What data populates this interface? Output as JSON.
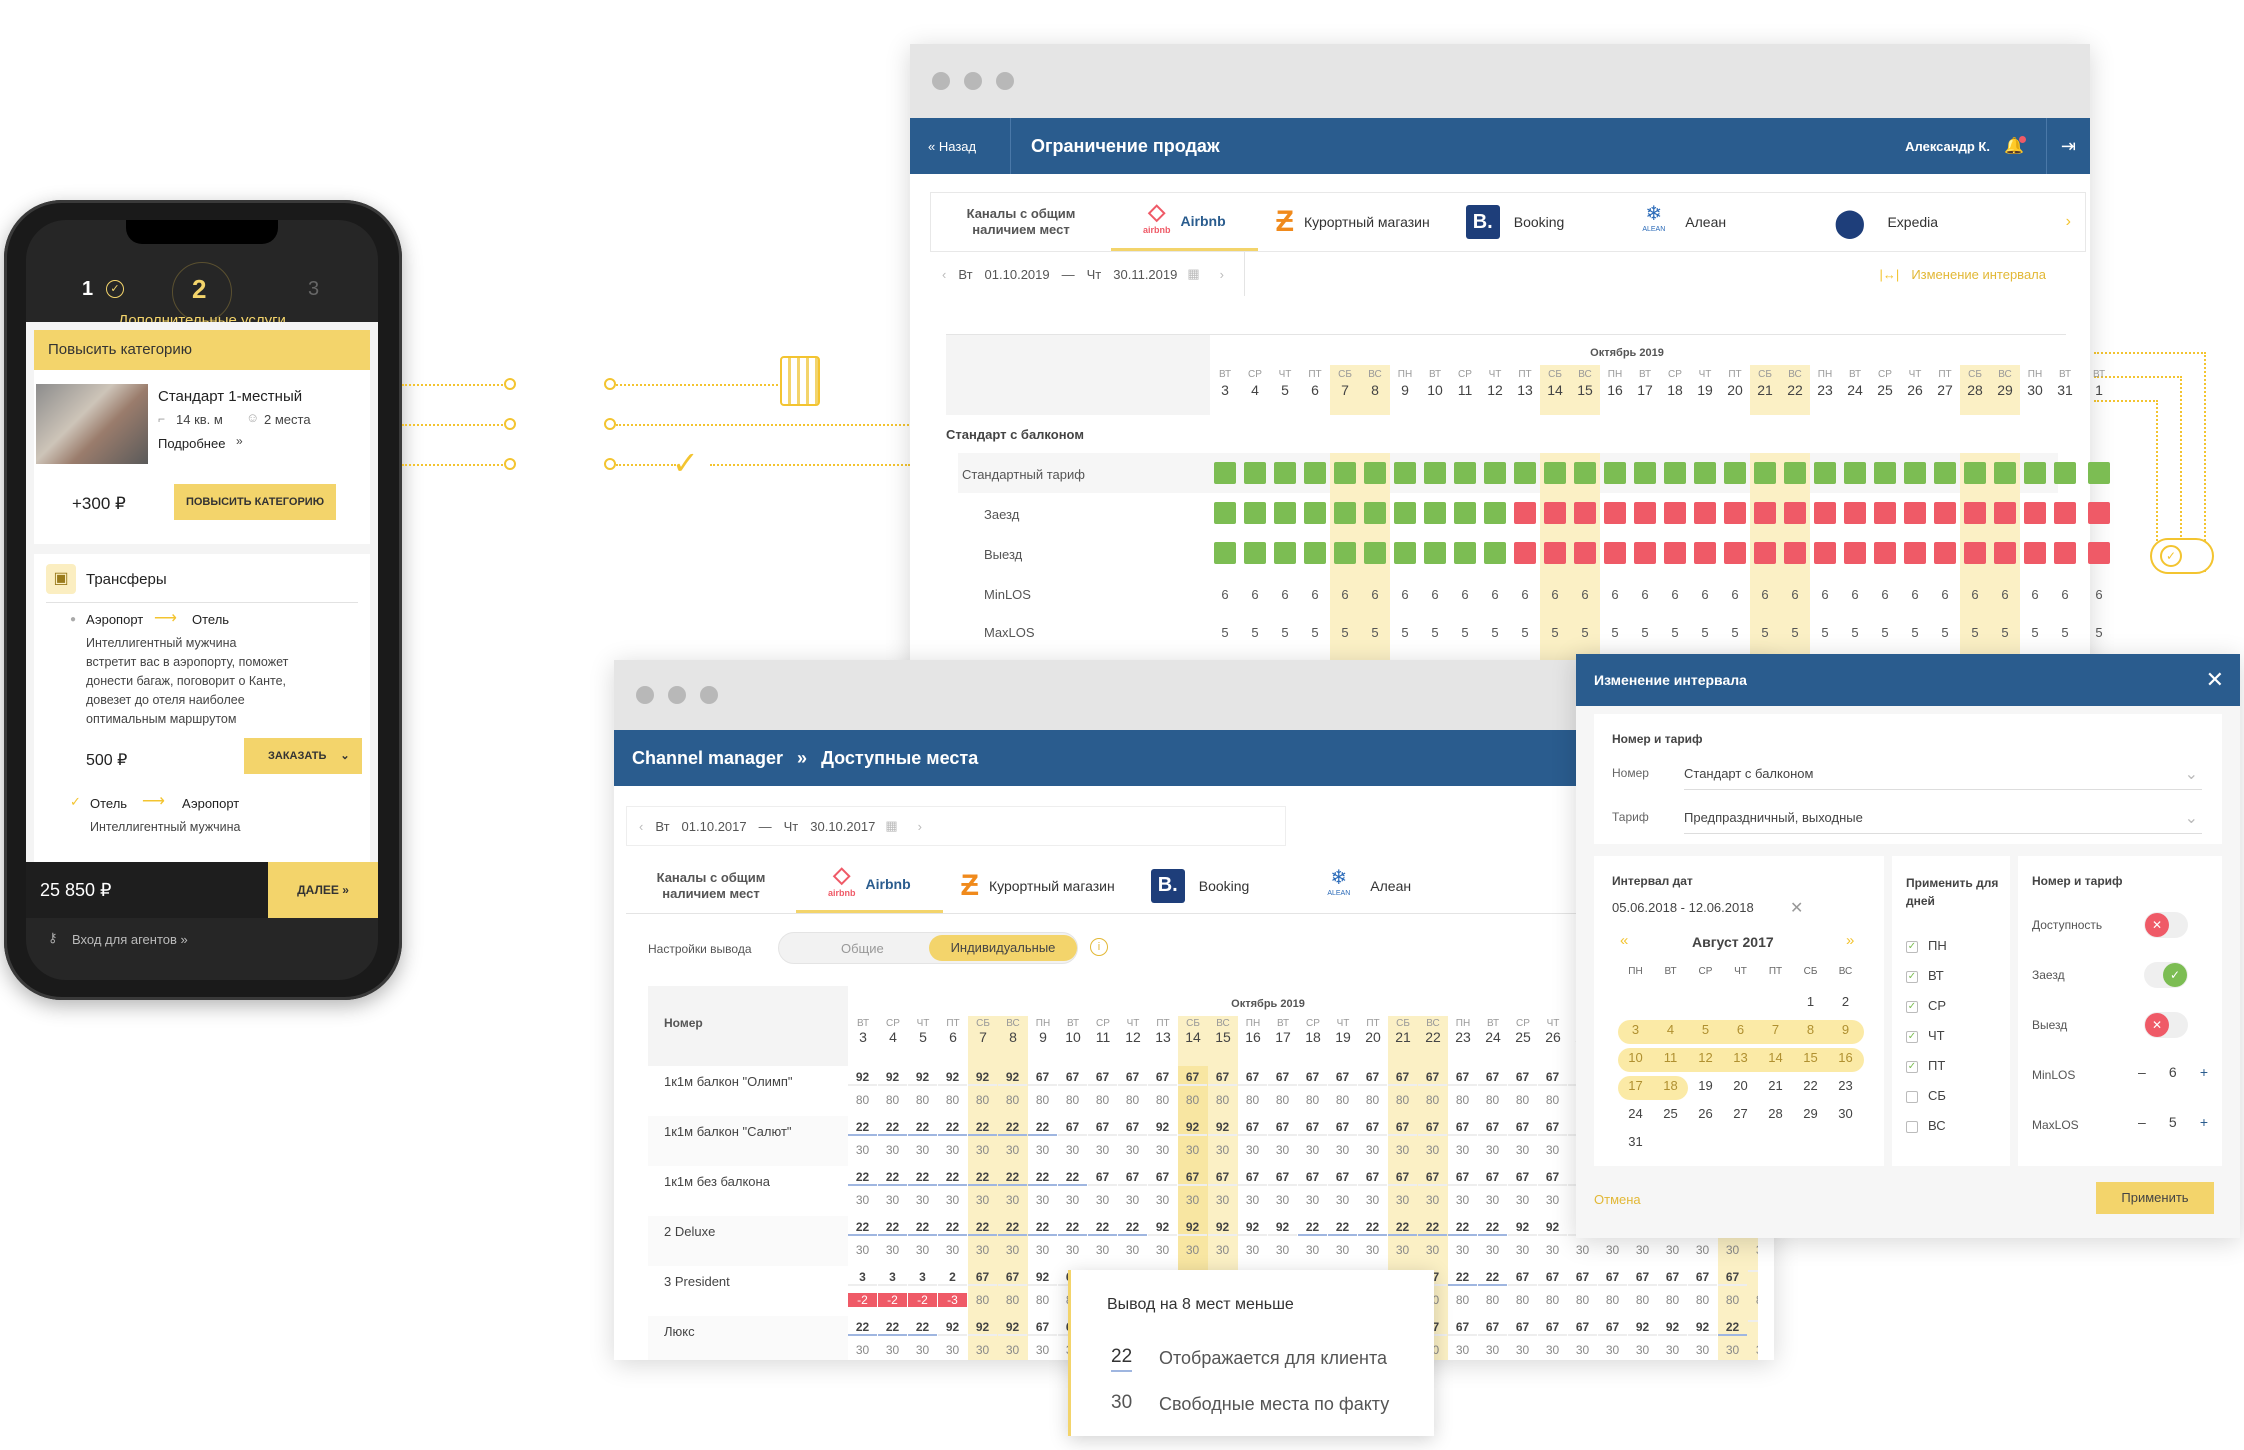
{
  "phone": {
    "steps": [
      "1",
      "2",
      "3"
    ],
    "step_title": "Дополнительные услуги",
    "upgrade_header": "Повысить категорию",
    "room_name": "Стандарт 1-местный",
    "room_area": "14 кв. м",
    "room_places": "2 места",
    "more": "Подробнее",
    "upgrade_price": "+300 ₽",
    "upgrade_button": "ПОВЫСИТЬ КАТЕГОРИЮ",
    "transfers_title": "Трансферы",
    "route1_from": "Аэропорт",
    "route1_to": "Отель",
    "route1_desc": [
      "Интеллигентный мужчина",
      "встретит вас в аэропорту, поможет",
      "донести багаж, поговорит о Канте,",
      "довезет до отеля наиболее",
      "оптимальным маршрутом"
    ],
    "route1_price": "500 ₽",
    "order_button": "ЗАКАЗАТЬ",
    "route2_from": "Отель",
    "route2_to": "Аэропорт",
    "route2_desc": "Интеллигентный мужчина",
    "total": "25 850 ₽",
    "next_button": "ДАЛЕЕ",
    "agents_link": "Вход для агентов »"
  },
  "sales_window": {
    "back": "« Назад",
    "title": "Ограничение продаж",
    "user": "Александр К.",
    "channels_label": "Каналы с общим наличием мест",
    "tabs": [
      "Airbnb",
      "Курортный магазин",
      "Booking",
      "Алеан",
      "Expedia"
    ],
    "airbnb_small": "airbnb",
    "alean_small": "ALEAN",
    "date_from_day": "Вт",
    "date_from": "01.10.2019",
    "date_to_day": "Чт",
    "date_to": "30.11.2019",
    "interval_link": "Изменение интервала",
    "month": "Октябрь 2019",
    "room": "Стандарт с балконом",
    "rows": [
      "Стандартный тариф",
      "Заезд",
      "Выезд",
      "MinLOS",
      "MaxLOS"
    ],
    "days": [
      [
        "ВТ",
        "3"
      ],
      [
        "СР",
        "4"
      ],
      [
        "ЧТ",
        "5"
      ],
      [
        "ПТ",
        "6"
      ],
      [
        "СБ",
        "7"
      ],
      [
        "ВС",
        "8"
      ],
      [
        "ПН",
        "9"
      ],
      [
        "ВТ",
        "10"
      ],
      [
        "СР",
        "11"
      ],
      [
        "ЧТ",
        "12"
      ],
      [
        "ПТ",
        "13"
      ],
      [
        "СБ",
        "14"
      ],
      [
        "ВС",
        "15"
      ],
      [
        "ПН",
        "16"
      ],
      [
        "ВТ",
        "17"
      ],
      [
        "СР",
        "18"
      ],
      [
        "ЧТ",
        "19"
      ],
      [
        "ПТ",
        "20"
      ],
      [
        "СБ",
        "21"
      ],
      [
        "ВС",
        "22"
      ],
      [
        "ПН",
        "23"
      ],
      [
        "ВТ",
        "24"
      ],
      [
        "СР",
        "25"
      ],
      [
        "ЧТ",
        "26"
      ],
      [
        "ПТ",
        "27"
      ],
      [
        "СБ",
        "28"
      ],
      [
        "ВС",
        "29"
      ],
      [
        "ПН",
        "30"
      ],
      [
        "ВТ",
        "31"
      ],
      [
        "ВТ",
        "1"
      ]
    ],
    "minlos": "6",
    "maxlos": "5"
  },
  "interval_dialog": {
    "title": "Изменение интервала",
    "section_room": "Номер и тариф",
    "room_label": "Номер",
    "room_value": "Стандарт с балконом",
    "tariff_label": "Тариф",
    "tariff_value": "Предпраздничный, выходные",
    "dates_label": "Интервал дат",
    "dates_value": "05.06.2018 - 12.06.2018",
    "cal_month": "Август 2017",
    "cal_prev": "«",
    "cal_next": "»",
    "weekdays": [
      "ПН",
      "ВТ",
      "СР",
      "ЧТ",
      "ПТ",
      "СБ",
      "ВС"
    ],
    "cal_weeks": [
      [
        "",
        "",
        "",
        "",
        "",
        "1",
        "2"
      ],
      [
        "3",
        "4",
        "5",
        "6",
        "7",
        "8",
        "9"
      ],
      [
        "10",
        "11",
        "12",
        "13",
        "14",
        "15",
        "16"
      ],
      [
        "17",
        "18",
        "19",
        "20",
        "21",
        "22",
        "23"
      ],
      [
        "24",
        "25",
        "26",
        "27",
        "28",
        "29",
        "30"
      ],
      [
        "31",
        "",
        "",
        "",
        "",
        "",
        ""
      ]
    ],
    "apply_days_label": "Применить для дней",
    "apply_days": [
      [
        "ПН",
        true
      ],
      [
        "ВТ",
        true
      ],
      [
        "СР",
        true
      ],
      [
        "ЧТ",
        true
      ],
      [
        "ПТ",
        true
      ],
      [
        "СБ",
        false
      ],
      [
        "ВС",
        false
      ]
    ],
    "room_tariff_label": "Номер и тариф",
    "toggles": [
      [
        "Доступность",
        "off"
      ],
      [
        "Заезд",
        "on"
      ],
      [
        "Выезд",
        "off"
      ]
    ],
    "minlos_label": "MinLOS",
    "minlos_value": "6",
    "maxlos_label": "MaxLOS",
    "maxlos_value": "5",
    "cancel": "Отмена",
    "apply": "Применить"
  },
  "channel_window": {
    "breadcrumb_root": "Channel manager",
    "breadcrumb_sep": "»",
    "title": "Доступные места",
    "date_from_day": "Вт",
    "date_from": "01.10.2017",
    "date_to_day": "Чт",
    "date_to": "30.10.2017",
    "channels_label": "Каналы с общим наличием мест",
    "tabs": [
      "Airbnb",
      "Курортный магазин",
      "Booking",
      "Алеан"
    ],
    "output_label": "Настройки вывода",
    "seg": [
      "Общие",
      "Индивидуальные"
    ],
    "col_room": "Номер",
    "month": "Октябрь 2019",
    "rooms": [
      "1к1м балкон \"Олимп\"",
      "1к1м балкон \"Салют\"",
      "1к1м без балкона",
      "2 Deluxe",
      "3 President",
      "Люкс"
    ],
    "tooltip_title": "Вывод на 8 мест меньше",
    "tooltip_a_num": "22",
    "tooltip_a": "Отображается для клиента",
    "tooltip_b_num": "30",
    "tooltip_b": "Свободные места по факту"
  },
  "colors": {
    "blue": "#2a5c8e",
    "yellow": "#f3d46b",
    "green": "#7cbd53",
    "red": "#ef5a67"
  }
}
